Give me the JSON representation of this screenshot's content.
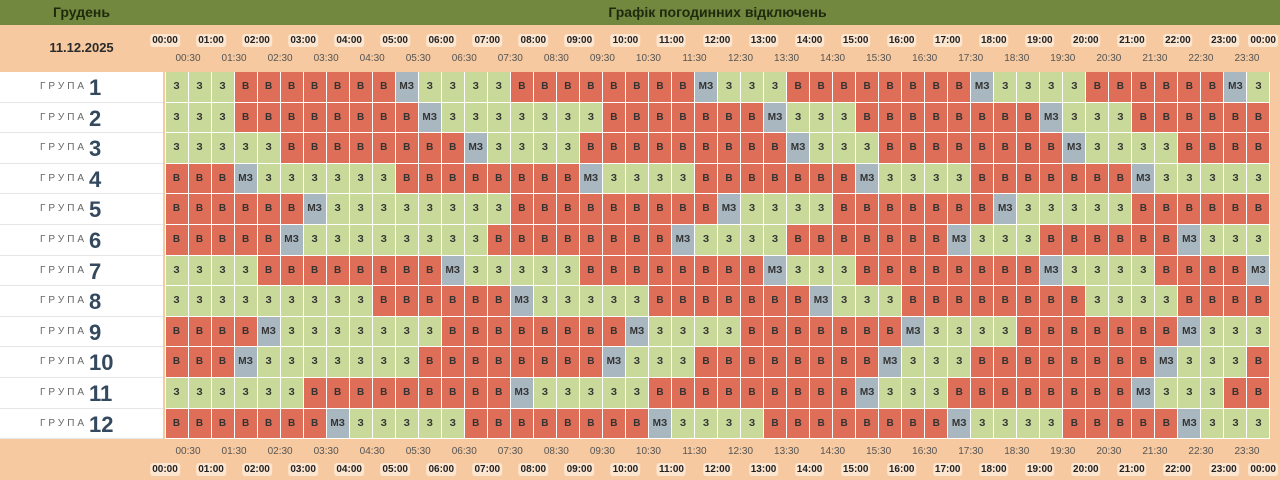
{
  "header": {
    "month": "Грудень",
    "title": "Графік погодинних відключень",
    "date": "11.12.2025"
  },
  "hours": [
    "00:00",
    "01:00",
    "02:00",
    "03:00",
    "04:00",
    "05:00",
    "06:00",
    "07:00",
    "08:00",
    "09:00",
    "10:00",
    "11:00",
    "12:00",
    "13:00",
    "14:00",
    "15:00",
    "16:00",
    "17:00",
    "18:00",
    "19:00",
    "20:00",
    "21:00",
    "22:00",
    "23:00",
    "00:00"
  ],
  "half_hours": [
    "00:30",
    "01:30",
    "02:30",
    "03:30",
    "04:30",
    "05:30",
    "06:30",
    "07:30",
    "08:30",
    "09:30",
    "10:30",
    "11:30",
    "12:30",
    "13:30",
    "14:30",
    "15:30",
    "16:30",
    "17:30",
    "18:30",
    "19:30",
    "20:30",
    "21:30",
    "22:30",
    "23:30"
  ],
  "rows": [
    {
      "label": "ГРУПА",
      "number": 1,
      "cells": [
        "З",
        "З",
        "З",
        "В",
        "В",
        "В",
        "В",
        "В",
        "В",
        "В",
        "МЗ",
        "З",
        "З",
        "З",
        "З",
        "В",
        "В",
        "В",
        "В",
        "В",
        "В",
        "В",
        "В",
        "МЗ",
        "З",
        "З",
        "З",
        "В",
        "В",
        "В",
        "В",
        "В",
        "В",
        "В",
        "В",
        "МЗ",
        "З",
        "З",
        "З",
        "З",
        "В",
        "В",
        "В",
        "В",
        "В",
        "В",
        "МЗ",
        "З"
      ]
    },
    {
      "label": "ГРУПА",
      "number": 2,
      "cells": [
        "З",
        "З",
        "З",
        "В",
        "В",
        "В",
        "В",
        "В",
        "В",
        "В",
        "В",
        "МЗ",
        "З",
        "З",
        "З",
        "З",
        "З",
        "З",
        "З",
        "В",
        "В",
        "В",
        "В",
        "В",
        "В",
        "В",
        "МЗ",
        "З",
        "З",
        "З",
        "В",
        "В",
        "В",
        "В",
        "В",
        "В",
        "В",
        "В",
        "МЗ",
        "З",
        "З",
        "З",
        "В",
        "В",
        "В",
        "В",
        "В",
        "В"
      ]
    },
    {
      "label": "ГРУПА",
      "number": 3,
      "cells": [
        "З",
        "З",
        "З",
        "З",
        "З",
        "В",
        "В",
        "В",
        "В",
        "В",
        "В",
        "В",
        "В",
        "МЗ",
        "З",
        "З",
        "З",
        "З",
        "В",
        "В",
        "В",
        "В",
        "В",
        "В",
        "В",
        "В",
        "В",
        "МЗ",
        "З",
        "З",
        "З",
        "В",
        "В",
        "В",
        "В",
        "В",
        "В",
        "В",
        "В",
        "МЗ",
        "З",
        "З",
        "З",
        "З",
        "В",
        "В",
        "В",
        "В"
      ]
    },
    {
      "label": "ГРУПА",
      "number": 4,
      "cells": [
        "В",
        "В",
        "В",
        "МЗ",
        "З",
        "З",
        "З",
        "З",
        "З",
        "З",
        "В",
        "В",
        "В",
        "В",
        "В",
        "В",
        "В",
        "В",
        "МЗ",
        "З",
        "З",
        "З",
        "З",
        "В",
        "В",
        "В",
        "В",
        "В",
        "В",
        "В",
        "МЗ",
        "З",
        "З",
        "З",
        "З",
        "В",
        "В",
        "В",
        "В",
        "В",
        "В",
        "В",
        "МЗ",
        "З",
        "З",
        "З",
        "З",
        "З"
      ]
    },
    {
      "label": "ГРУПА",
      "number": 5,
      "cells": [
        "В",
        "В",
        "В",
        "В",
        "В",
        "В",
        "МЗ",
        "З",
        "З",
        "З",
        "З",
        "З",
        "З",
        "З",
        "З",
        "В",
        "В",
        "В",
        "В",
        "В",
        "В",
        "В",
        "В",
        "В",
        "МЗ",
        "З",
        "З",
        "З",
        "З",
        "В",
        "В",
        "В",
        "В",
        "В",
        "В",
        "В",
        "МЗ",
        "З",
        "З",
        "З",
        "З",
        "З",
        "В",
        "В",
        "В",
        "В",
        "В",
        "В"
      ]
    },
    {
      "label": "ГРУПА",
      "number": 6,
      "cells": [
        "В",
        "В",
        "В",
        "В",
        "В",
        "МЗ",
        "З",
        "З",
        "З",
        "З",
        "З",
        "З",
        "З",
        "З",
        "В",
        "В",
        "В",
        "В",
        "В",
        "В",
        "В",
        "В",
        "МЗ",
        "З",
        "З",
        "З",
        "З",
        "В",
        "В",
        "В",
        "В",
        "В",
        "В",
        "В",
        "МЗ",
        "З",
        "З",
        "З",
        "В",
        "В",
        "В",
        "В",
        "В",
        "В",
        "МЗ",
        "З",
        "З",
        "З"
      ]
    },
    {
      "label": "ГРУПА",
      "number": 7,
      "cells": [
        "З",
        "З",
        "З",
        "З",
        "В",
        "В",
        "В",
        "В",
        "В",
        "В",
        "В",
        "В",
        "МЗ",
        "З",
        "З",
        "З",
        "З",
        "З",
        "В",
        "В",
        "В",
        "В",
        "В",
        "В",
        "В",
        "В",
        "МЗ",
        "З",
        "З",
        "З",
        "В",
        "В",
        "В",
        "В",
        "В",
        "В",
        "В",
        "В",
        "МЗ",
        "З",
        "З",
        "З",
        "З",
        "В",
        "В",
        "В",
        "В",
        "МЗ"
      ]
    },
    {
      "label": "ГРУПА",
      "number": 8,
      "cells": [
        "З",
        "З",
        "З",
        "З",
        "З",
        "З",
        "З",
        "З",
        "З",
        "В",
        "В",
        "В",
        "В",
        "В",
        "В",
        "МЗ",
        "З",
        "З",
        "З",
        "З",
        "З",
        "В",
        "В",
        "В",
        "В",
        "В",
        "В",
        "В",
        "МЗ",
        "З",
        "З",
        "З",
        "В",
        "В",
        "В",
        "В",
        "В",
        "В",
        "В",
        "В",
        "З",
        "З",
        "З",
        "З",
        "В",
        "В",
        "В",
        "В"
      ]
    },
    {
      "label": "ГРУПА",
      "number": 9,
      "cells": [
        "В",
        "В",
        "В",
        "В",
        "МЗ",
        "З",
        "З",
        "З",
        "З",
        "З",
        "З",
        "З",
        "В",
        "В",
        "В",
        "В",
        "В",
        "В",
        "В",
        "В",
        "МЗ",
        "З",
        "З",
        "З",
        "З",
        "В",
        "В",
        "В",
        "В",
        "В",
        "В",
        "В",
        "МЗ",
        "З",
        "З",
        "З",
        "З",
        "В",
        "В",
        "В",
        "В",
        "В",
        "В",
        "В",
        "МЗ",
        "З",
        "З",
        "З"
      ]
    },
    {
      "label": "ГРУПА",
      "number": 10,
      "cells": [
        "В",
        "В",
        "В",
        "МЗ",
        "З",
        "З",
        "З",
        "З",
        "З",
        "З",
        "З",
        "В",
        "В",
        "В",
        "В",
        "В",
        "В",
        "В",
        "В",
        "МЗ",
        "З",
        "З",
        "З",
        "В",
        "В",
        "В",
        "В",
        "В",
        "В",
        "В",
        "В",
        "МЗ",
        "З",
        "З",
        "З",
        "В",
        "В",
        "В",
        "В",
        "В",
        "В",
        "В",
        "В",
        "МЗ",
        "З",
        "З",
        "З",
        "В"
      ]
    },
    {
      "label": "ГРУПА",
      "number": 11,
      "cells": [
        "З",
        "З",
        "З",
        "З",
        "З",
        "З",
        "В",
        "В",
        "В",
        "В",
        "В",
        "В",
        "В",
        "В",
        "В",
        "МЗ",
        "З",
        "З",
        "З",
        "З",
        "З",
        "В",
        "В",
        "В",
        "В",
        "В",
        "В",
        "В",
        "В",
        "В",
        "МЗ",
        "З",
        "З",
        "З",
        "В",
        "В",
        "В",
        "В",
        "В",
        "В",
        "В",
        "В",
        "МЗ",
        "З",
        "З",
        "З",
        "В",
        "В"
      ]
    },
    {
      "label": "ГРУПА",
      "number": 12,
      "cells": [
        "В",
        "В",
        "В",
        "В",
        "В",
        "В",
        "В",
        "МЗ",
        "З",
        "З",
        "З",
        "З",
        "З",
        "В",
        "В",
        "В",
        "В",
        "В",
        "В",
        "В",
        "В",
        "МЗ",
        "З",
        "З",
        "З",
        "З",
        "В",
        "В",
        "В",
        "В",
        "В",
        "В",
        "В",
        "В",
        "МЗ",
        "З",
        "З",
        "З",
        "З",
        "В",
        "В",
        "В",
        "В",
        "В",
        "МЗ",
        "З",
        "З",
        "З"
      ]
    }
  ]
}
